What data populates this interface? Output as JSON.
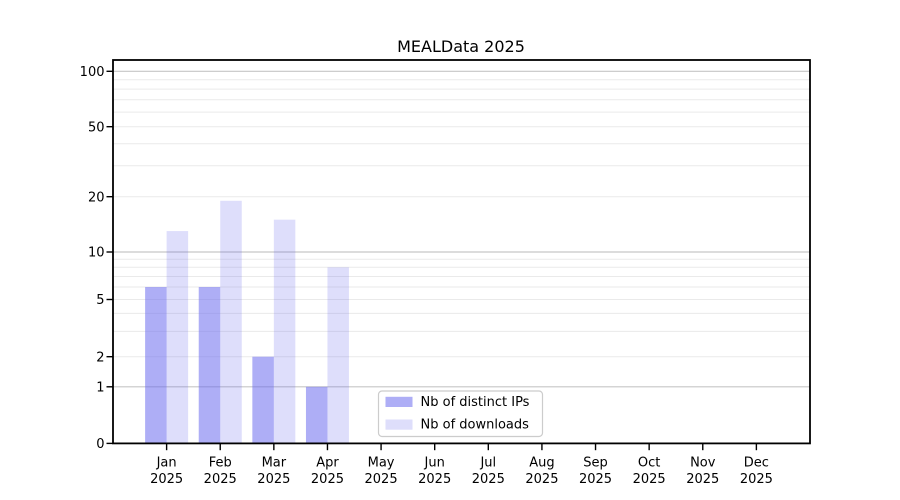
{
  "page": {
    "background": "#ffffff"
  },
  "chart_data": {
    "type": "bar",
    "title": "MEALData 2025",
    "categories": [
      {
        "month": "Jan",
        "year": "2025"
      },
      {
        "month": "Feb",
        "year": "2025"
      },
      {
        "month": "Mar",
        "year": "2025"
      },
      {
        "month": "Apr",
        "year": "2025"
      },
      {
        "month": "May",
        "year": "2025"
      },
      {
        "month": "Jun",
        "year": "2025"
      },
      {
        "month": "Jul",
        "year": "2025"
      },
      {
        "month": "Aug",
        "year": "2025"
      },
      {
        "month": "Sep",
        "year": "2025"
      },
      {
        "month": "Oct",
        "year": "2025"
      },
      {
        "month": "Nov",
        "year": "2025"
      },
      {
        "month": "Dec",
        "year": "2025"
      }
    ],
    "series": [
      {
        "name": "Nb of distinct IPs",
        "color": "#6b6bee",
        "fill_opacity": 0.55,
        "rendered_hex": "#aaaaf2",
        "values": [
          6,
          6,
          2,
          1,
          0,
          0,
          0,
          0,
          0,
          0,
          0,
          0
        ]
      },
      {
        "name": "Nb of downloads",
        "color": "#6b6bee",
        "fill_opacity": 0.22,
        "rendered_hex": "#dcdcf9",
        "values": [
          13,
          19,
          15,
          8,
          0,
          0,
          0,
          0,
          0,
          0,
          0,
          0
        ]
      }
    ],
    "y_axis": {
      "ticks": [
        0,
        1,
        2,
        5,
        10,
        20,
        50,
        100
      ],
      "scale": "log (linear segment below 1)",
      "major_gridlines": [
        1,
        10,
        100
      ],
      "minor_gridlines": [
        2,
        3,
        4,
        5,
        6,
        7,
        8,
        9,
        20,
        30,
        40,
        50,
        60,
        70,
        80,
        90
      ]
    },
    "x_axis": {
      "label_lines": 2
    },
    "legend": {
      "position": "lower center-left inside plot"
    },
    "grid": true,
    "ylim": [
      0,
      100
    ]
  },
  "colors": {
    "bar_base": "#6b6bee",
    "dark_bar_rendered": "#aaaaf2",
    "light_bar_rendered": "#dcdcf9",
    "major_grid": "#c6c6c6",
    "minor_grid": "#eaeaea",
    "spine": "#000000",
    "legend_border": "#cccccc",
    "legend_fill": "#ffffff"
  }
}
